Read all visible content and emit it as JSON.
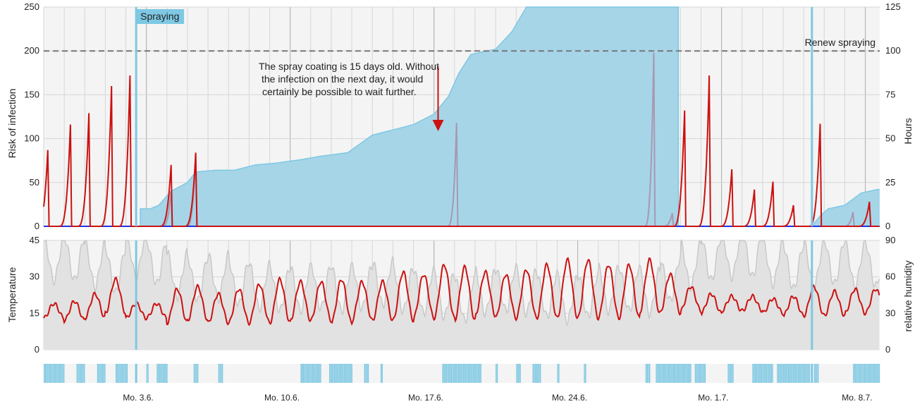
{
  "chart_data": [
    {
      "type": "line",
      "panel": "risk",
      "ylabel": "Risk of infection",
      "y2label": "Hours",
      "ylim": [
        0,
        250
      ],
      "y2lim": [
        0,
        125
      ],
      "yticks": [
        "0",
        "50",
        "100",
        "150",
        "200",
        "250"
      ],
      "y2ticks": [
        "0",
        "25",
        "50",
        "75",
        "100",
        "125"
      ],
      "grid": true,
      "threshold": {
        "value": 200,
        "label": "Renew spraying"
      },
      "annotation": {
        "lines": [
          "The spray coating is 15 days old. Without",
          "the infection on the next day, it would",
          "certainly be possible to wait further."
        ],
        "arrow_day": 19.2
      },
      "spray_events": [
        {
          "day": 4.5,
          "label": "Spraying"
        },
        {
          "day": 37.4,
          "label": ""
        }
      ],
      "series": [
        {
          "role": "risk",
          "color": "#cc1111",
          "peaks": [
            [
              0.2,
              87
            ],
            [
              1.3,
              116
            ],
            [
              2.2,
              129
            ],
            [
              3.3,
              160
            ],
            [
              4.2,
              172
            ],
            [
              6.2,
              70
            ],
            [
              7.4,
              84
            ],
            [
              31.2,
              132
            ],
            [
              32.4,
              172
            ],
            [
              33.5,
              65
            ],
            [
              34.6,
              42
            ],
            [
              35.5,
              51
            ],
            [
              36.5,
              24
            ],
            [
              37.8,
              117
            ],
            [
              40.2,
              28
            ]
          ]
        },
        {
          "role": "risk-mitigated",
          "color": "#a898b0",
          "peaks": [
            [
              6.2,
              40
            ],
            [
              7.4,
              84
            ],
            [
              20.1,
              118
            ],
            [
              29.7,
              198
            ],
            [
              30.6,
              15
            ],
            [
              39.4,
              16
            ]
          ]
        },
        {
          "role": "hours",
          "color": "#7ec8e3",
          "points": [
            [
              4.7,
              0
            ],
            [
              4.7,
              10
            ],
            [
              5.2,
              10
            ],
            [
              5.6,
              12
            ],
            [
              6.2,
              20
            ],
            [
              7.0,
              25
            ],
            [
              7.4,
              31
            ],
            [
              8.4,
              32
            ],
            [
              9.3,
              32
            ],
            [
              10.3,
              35
            ],
            [
              11.3,
              36
            ],
            [
              12.5,
              38
            ],
            [
              13.5,
              40
            ],
            [
              14.8,
              42
            ],
            [
              16.0,
              52
            ],
            [
              17.0,
              55
            ],
            [
              18.0,
              58
            ],
            [
              19.0,
              64
            ],
            [
              19.7,
              74
            ],
            [
              20.2,
              87
            ],
            [
              20.8,
              98
            ],
            [
              22.0,
              101
            ],
            [
              22.8,
              111
            ],
            [
              23.5,
              125
            ],
            [
              30.9,
              125
            ],
            [
              30.9,
              0
            ],
            [
              37.4,
              0
            ],
            [
              37.8,
              6
            ],
            [
              38.2,
              10
            ],
            [
              39.0,
              12
            ],
            [
              39.8,
              19
            ],
            [
              40.6,
              21
            ],
            [
              40.7,
              21
            ]
          ]
        }
      ]
    },
    {
      "type": "line",
      "panel": "weather",
      "ylabel": "Temperature",
      "y2label": "relative humidity",
      "ylim": [
        0,
        45
      ],
      "y2lim": [
        0,
        90
      ],
      "yticks": [
        "0",
        "15",
        "30",
        "45"
      ],
      "y2ticks": [
        "0",
        "30",
        "60",
        "90"
      ],
      "grid": true,
      "series": [
        {
          "role": "temperature",
          "color": "#cc1111",
          "daily_mean": [
            16,
            16,
            18,
            22,
            16,
            16,
            18,
            19,
            17,
            18,
            19,
            20,
            20,
            20,
            20,
            20,
            20,
            22,
            22,
            24,
            23,
            23,
            22,
            23,
            24,
            25,
            25,
            24,
            24,
            26,
            23,
            21,
            19,
            19,
            19,
            18,
            18,
            20,
            19,
            20,
            20
          ],
          "daily_amplitude": [
            3,
            4,
            5,
            7,
            3,
            3,
            7,
            7,
            6,
            7,
            8,
            9,
            8,
            8,
            9,
            8,
            8,
            10,
            9,
            11,
            11,
            9,
            9,
            10,
            11,
            12,
            12,
            11,
            11,
            11,
            8,
            5,
            4,
            3,
            3,
            3,
            4,
            6,
            5,
            5,
            5
          ]
        },
        {
          "role": "humidity",
          "color": "#c8c8c8",
          "daily_mean": [
            75,
            75,
            70,
            65,
            78,
            72,
            62,
            58,
            60,
            55,
            52,
            50,
            50,
            52,
            50,
            52,
            55,
            50,
            48,
            45,
            42,
            48,
            50,
            48,
            45,
            42,
            45,
            50,
            50,
            48,
            58,
            70,
            75,
            78,
            78,
            72,
            68,
            70,
            72,
            70,
            70
          ]
        }
      ]
    },
    {
      "type": "bar",
      "panel": "wetness",
      "series": [
        {
          "role": "leaf-wetness",
          "color": "#7ec8e3",
          "intervals": [
            [
              0.0,
              1.0
            ],
            [
              1.6,
              2.0
            ],
            [
              2.6,
              3.0
            ],
            [
              3.5,
              4.1
            ],
            [
              5.0,
              5.1
            ],
            [
              5.5,
              6.0
            ],
            [
              7.3,
              7.5
            ],
            [
              8.5,
              8.7
            ],
            [
              12.5,
              13.5
            ],
            [
              13.9,
              15.0
            ],
            [
              15.6,
              15.8
            ],
            [
              16.4,
              16.5
            ],
            [
              19.4,
              21.3
            ],
            [
              22.0,
              22.1
            ],
            [
              23.0,
              23.2
            ],
            [
              23.8,
              24.2
            ],
            [
              25.0,
              25.1
            ],
            [
              26.3,
              26.4
            ],
            [
              29.3,
              29.5
            ],
            [
              29.8,
              31.5
            ],
            [
              31.7,
              32.2
            ],
            [
              33.3,
              33.6
            ],
            [
              34.5,
              35.5
            ],
            [
              35.7,
              37.3
            ],
            [
              37.5,
              37.7
            ],
            [
              39.4,
              40.7
            ]
          ]
        }
      ]
    }
  ],
  "x_axis": {
    "day_min": 0,
    "day_max": 40.7,
    "ticks": [
      {
        "day": 4.6,
        "label": "Mo. 3.6."
      },
      {
        "day": 11.6,
        "label": "Mo. 10.6."
      },
      {
        "day": 18.6,
        "label": "Mo. 17.6."
      },
      {
        "day": 25.6,
        "label": "Mo. 24.6."
      },
      {
        "day": 32.6,
        "label": "Mo. 1.7."
      },
      {
        "day": 39.6,
        "label": "Mo. 8.7."
      }
    ]
  },
  "colors": {
    "risk": "#cc1111",
    "hours_fill": "#a6d5e8",
    "hours_line": "#7ec8e3",
    "spray": "#7ec8e3",
    "mitigated": "#a898b0",
    "baseline": "#2233dd",
    "humidity_fill": "#e2e2e2",
    "humidity_line": "#c8c8c8",
    "panel_bg": "#f4f4f4",
    "grid": "#d6d6d6",
    "dash": "#777777"
  }
}
